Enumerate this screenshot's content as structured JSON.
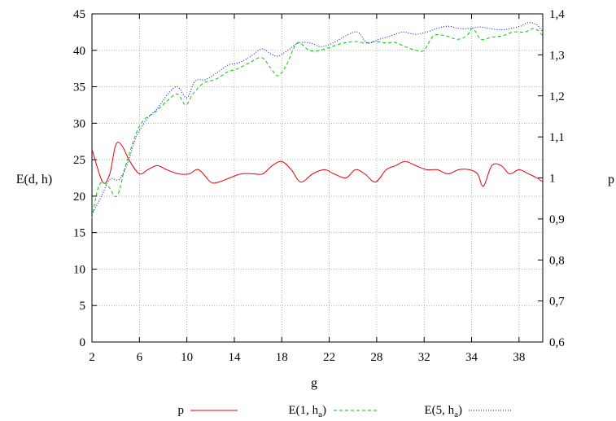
{
  "chart_data": {
    "type": "line",
    "title": "",
    "xlabel": "g",
    "ylabel_left": "E(d, h)",
    "ylabel_right": "p",
    "xlim": [
      2,
      40
    ],
    "ylim_left": [
      0,
      45
    ],
    "ylim_right": [
      0.6,
      1.4
    ],
    "grid": true,
    "legend_position": "bottom",
    "x_tick_labels": [
      "2",
      "6",
      "10",
      "14",
      "18",
      "22",
      "28",
      "32",
      "34",
      "38"
    ],
    "y_left_tick_labels": [
      "0",
      "5",
      "10",
      "15",
      "20",
      "25",
      "30",
      "35",
      "40",
      "45"
    ],
    "y_right_tick_labels": [
      "0,6",
      "0,7",
      "0,8",
      "0,9",
      "1",
      "1,1",
      "1,2",
      "1,3",
      "1,4"
    ],
    "series": [
      {
        "name": "p",
        "axis": "right",
        "color": "#e8000b",
        "style": "solid",
        "x": [
          2,
          2.9,
          3.5,
          4,
          4.5,
          5.2,
          6,
          6.7,
          7.5,
          8.3,
          9.3,
          10.2,
          11,
          12,
          12.7,
          13.6,
          14.6,
          15.6,
          16.4,
          17.2,
          18,
          18.8,
          19.6,
          20.6,
          21.6,
          22.4,
          23.4,
          24.2,
          25,
          25.9,
          26.8,
          27.6,
          28.4,
          29.3,
          30.2,
          31.1,
          32,
          32.9,
          33.8,
          34.5,
          35,
          35.7,
          36.5,
          37.2,
          38,
          38.8,
          39.5,
          40
        ],
        "y": [
          1.07,
          0.99,
          1.01,
          1.08,
          1.08,
          1.04,
          1.01,
          1.02,
          1.03,
          1.02,
          1.01,
          1.01,
          1.02,
          0.99,
          0.99,
          1.0,
          1.01,
          1.01,
          1.01,
          1.03,
          1.04,
          1.02,
          0.99,
          1.01,
          1.02,
          1.01,
          1.0,
          1.02,
          1.01,
          0.99,
          1.02,
          1.03,
          1.04,
          1.03,
          1.02,
          1.02,
          1.01,
          1.02,
          1.02,
          1.01,
          0.98,
          1.03,
          1.03,
          1.01,
          1.02,
          1.01,
          1.0,
          0.99
        ]
      },
      {
        "name": "E(1, h_a)",
        "axis": "left",
        "color": "#00cc00",
        "style": "dashed",
        "x": [
          2,
          2.6,
          3.3,
          4.1,
          4.8,
          5.7,
          6.4,
          7.3,
          8.3,
          9.2,
          9.9,
          10.5,
          11.4,
          12.4,
          13.4,
          14.3,
          15.3,
          16.3,
          17.1,
          17.7,
          18.4,
          19.3,
          20.3,
          21.2,
          22.2,
          23.2,
          24.2,
          25.1,
          25.9,
          26.8,
          27.5,
          28.4,
          29.3,
          30,
          30.8,
          31.8,
          32.8,
          33.6,
          34.1,
          34.8,
          35.7,
          36.6,
          37.5,
          38.5,
          39.3,
          40
        ],
        "y": [
          17,
          21.5,
          21.5,
          20,
          24,
          28.5,
          30.5,
          31.5,
          33,
          34,
          32.5,
          34,
          35.5,
          36,
          37,
          37.5,
          38.3,
          39,
          37.5,
          36.5,
          38,
          41,
          40,
          40,
          40.5,
          41,
          41.2,
          41,
          41.2,
          41,
          41.1,
          40.5,
          40,
          40,
          42,
          42,
          41.5,
          42,
          43,
          41.5,
          41.8,
          42,
          42.5,
          42.5,
          43,
          42
        ]
      },
      {
        "name": "E(5, h_a)",
        "axis": "left",
        "color": "#0000dd",
        "style": "dotted",
        "x": [
          2,
          2.8,
          3.5,
          4.3,
          5,
          5.7,
          6.6,
          7.5,
          8.4,
          9.2,
          10,
          10.7,
          11.6,
          12.6,
          13.5,
          14.4,
          15.4,
          16.3,
          17.1,
          17.7,
          18.5,
          19.4,
          20.4,
          21.3,
          22.3,
          23.4,
          24.4,
          25.2,
          26.2,
          27.2,
          28.2,
          29.2,
          30.2,
          31.1,
          32,
          32.9,
          33.8,
          34.7,
          35.5,
          36.5,
          37.3,
          38.1,
          38.8,
          39.5,
          40
        ],
        "y": [
          17.5,
          20,
          22.3,
          22.3,
          24.5,
          28,
          30.5,
          32,
          34,
          35,
          33.5,
          35.8,
          36,
          37,
          38,
          38.3,
          39.2,
          40.2,
          39.5,
          39.2,
          40,
          41,
          41,
          40.5,
          41,
          42,
          42.5,
          41,
          41.5,
          42,
          42.5,
          42.2,
          42.5,
          43,
          43.3,
          43,
          43,
          43.2,
          43,
          42.8,
          43,
          43.3,
          43.8,
          43.5,
          42.5
        ]
      }
    ]
  },
  "legend": [
    {
      "label": "p",
      "sub": "",
      "close": ""
    },
    {
      "label": "E(1, h",
      "sub": "a",
      "close": ")"
    },
    {
      "label": "E(5, h",
      "sub": "a",
      "close": ")"
    }
  ]
}
